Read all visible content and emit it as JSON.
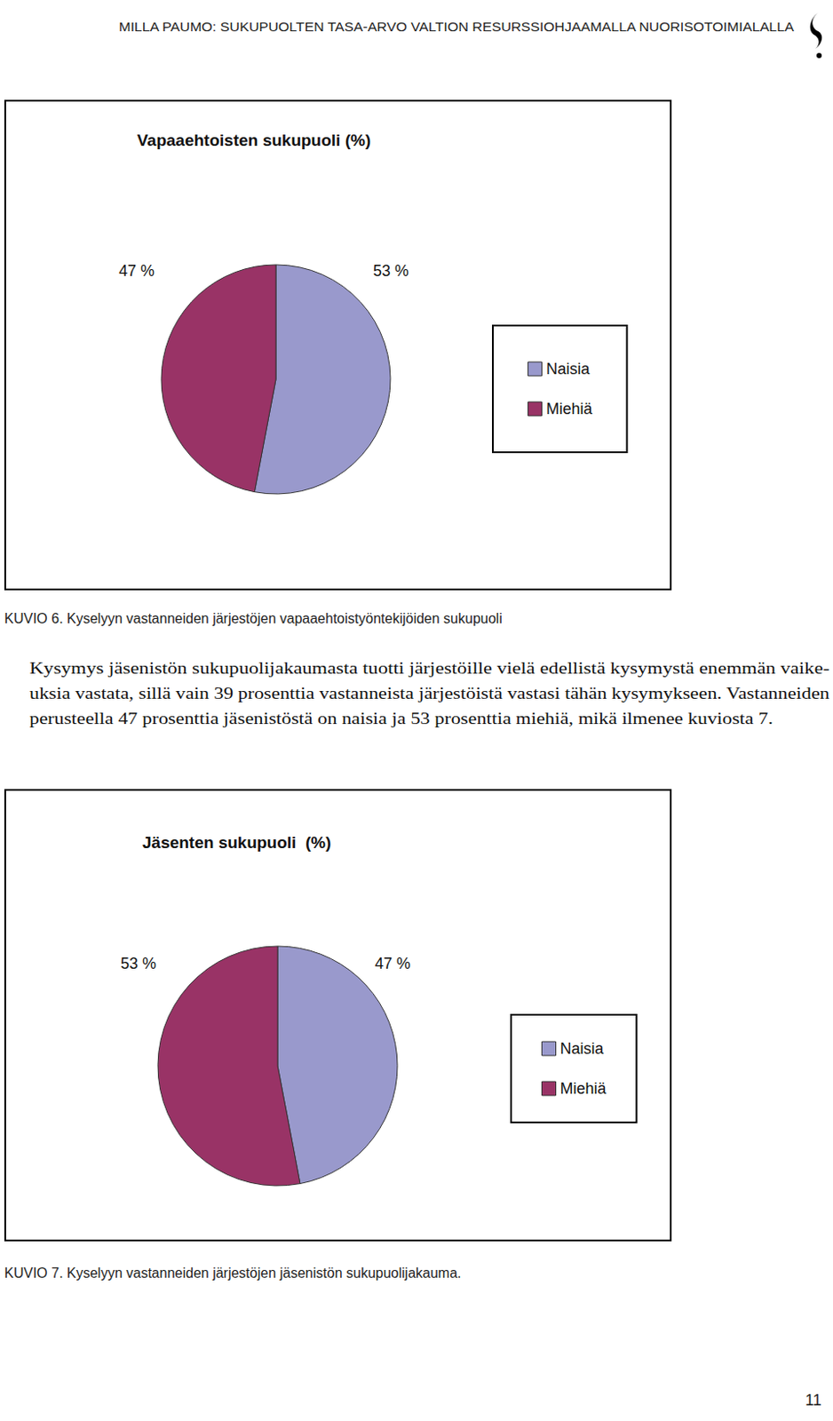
{
  "header": "MILLA PAUMO: SUKUPUOLTEN TASA-ARVO VALTION RESURSSIOHJAAMALLA NUORISOTOIMIALALLA",
  "chart_data": [
    {
      "type": "pie",
      "title": "Vapaaehtoisten sukupuoli (%)",
      "categories": [
        "Naisia",
        "Miehiä"
      ],
      "values": [
        53,
        47
      ],
      "value_labels": [
        "53 %",
        "47 %"
      ],
      "colors": [
        "#9999cc",
        "#993366"
      ],
      "legend": "right",
      "data_labels": true
    },
    {
      "type": "pie",
      "title": "Jäsenten sukupuoli  (%)",
      "categories": [
        "Naisia",
        "Miehiä"
      ],
      "values": [
        47,
        53
      ],
      "value_labels": [
        "47 %",
        "53 %"
      ],
      "colors": [
        "#9999cc",
        "#993366"
      ],
      "legend": "right",
      "data_labels": true
    }
  ],
  "captions": [
    "KUVIO 6. Kyselyyn vastanneiden järjestöjen vapaaehtoistyöntekijöiden sukupuoli",
    "KUVIO 7. Kyselyyn vastanneiden järjestöjen jäsenistön sukupuolijakauma."
  ],
  "paragraph": [
    "Kysymys jäsenistön sukupuolijakaumasta tuotti järjestöille vielä edellistä kysymystä enemmän vaike-",
    "uksia vastata, sillä vain 39 prosenttia vastanneista järjestöistä vastasi tähän kysymykseen. Vastanneiden",
    "perusteella 47 prosenttia jäsenistöstä on naisia ja 53 prosenttia miehiä, mikä ilmenee kuviosta 7."
  ],
  "page_number": 11
}
